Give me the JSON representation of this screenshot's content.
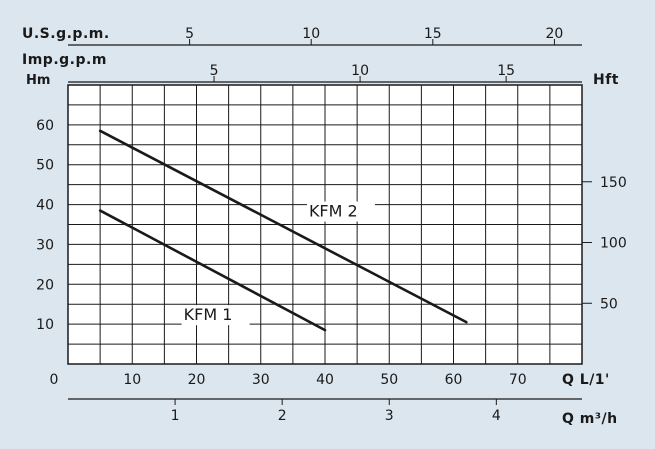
{
  "chart_data": {
    "type": "line",
    "title": "",
    "axes": {
      "top_usgpm": {
        "label": "U.S.g.p.m.",
        "ticks": [
          5,
          10,
          15,
          20
        ]
      },
      "top_impgpm": {
        "label": "Imp.g.p.m",
        "ticks": [
          5,
          10,
          15
        ]
      },
      "left_hm": {
        "label": "Hm",
        "ticks": [
          10,
          20,
          30,
          40,
          50,
          60
        ],
        "range": [
          0,
          70
        ]
      },
      "right_hft": {
        "label": "Hft",
        "ticks": [
          50,
          100,
          150
        ]
      },
      "bottom_lmin": {
        "label": "Q L/1'",
        "ticks": [
          0,
          10,
          20,
          30,
          40,
          50,
          60,
          70
        ],
        "range": [
          0,
          80
        ]
      },
      "bottom_m3h": {
        "label": "Q m³/h",
        "ticks": [
          1,
          2,
          3,
          4
        ]
      }
    },
    "grid": true,
    "series": [
      {
        "name": "KFM 1",
        "points": [
          [
            5,
            38.5
          ],
          [
            40,
            8.5
          ]
        ]
      },
      {
        "name": "KFM 2",
        "points": [
          [
            5,
            58.5
          ],
          [
            62,
            10.5
          ]
        ]
      }
    ]
  }
}
